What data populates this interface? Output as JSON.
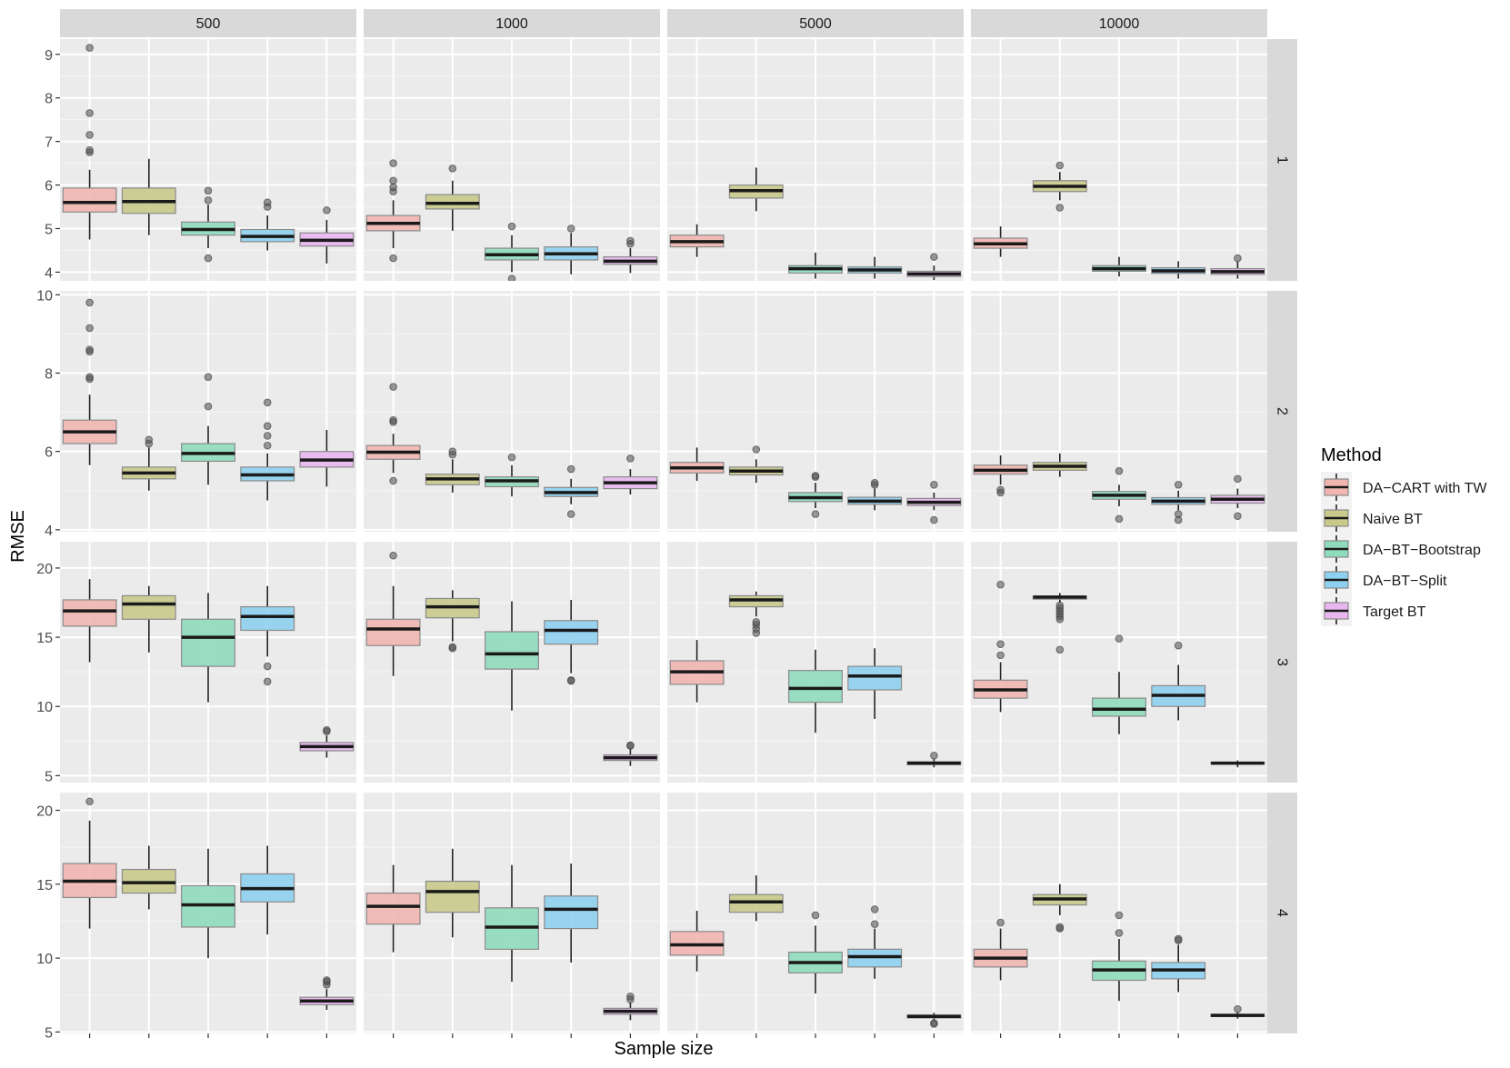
{
  "chart_data": {
    "type": "boxplot",
    "xlabel": "Sample size",
    "ylabel": "RMSE",
    "col_facets": [
      "500",
      "1000",
      "5000",
      "10000"
    ],
    "row_facets": [
      "1",
      "2",
      "3",
      "4"
    ],
    "legend": {
      "title": "Method",
      "position": "right",
      "entries": [
        "DA−CART with TW",
        "Naive BT",
        "DA−BT−Bootstrap",
        "DA−BT−Split",
        "Target BT"
      ]
    },
    "colors": [
      "#f1b6b0",
      "#c9c98c",
      "#8fdcbc",
      "#8ed0ef",
      "#e9b7ef"
    ],
    "grid": true,
    "rows": [
      {
        "yticks": [
          4,
          5,
          6,
          7,
          8,
          9
        ],
        "ylim": [
          3.8,
          9.35
        ],
        "panels": [
          [
            {
              "lo": 4.75,
              "q1": 5.38,
              "med": 5.6,
              "q3": 5.93,
              "hi": 6.35,
              "out": [
                6.75,
                6.8,
                7.15,
                7.65,
                9.15
              ]
            },
            {
              "lo": 4.85,
              "q1": 5.35,
              "med": 5.62,
              "q3": 5.93,
              "hi": 6.6,
              "out": []
            },
            {
              "lo": 4.55,
              "q1": 4.85,
              "med": 4.98,
              "q3": 5.15,
              "hi": 5.55,
              "out": [
                4.32,
                5.65,
                5.87
              ]
            },
            {
              "lo": 4.5,
              "q1": 4.7,
              "med": 4.82,
              "q3": 4.98,
              "hi": 5.3,
              "out": [
                5.5,
                5.6
              ]
            },
            {
              "lo": 4.2,
              "q1": 4.6,
              "med": 4.73,
              "q3": 4.9,
              "hi": 5.2,
              "out": [
                5.42
              ]
            }
          ],
          [
            {
              "lo": 4.55,
              "q1": 4.95,
              "med": 5.12,
              "q3": 5.3,
              "hi": 5.65,
              "out": [
                4.32,
                5.85,
                5.95,
                6.1,
                6.5
              ]
            },
            {
              "lo": 4.95,
              "q1": 5.45,
              "med": 5.58,
              "q3": 5.78,
              "hi": 6.1,
              "out": [
                6.38
              ]
            },
            {
              "lo": 4.0,
              "q1": 4.28,
              "med": 4.4,
              "q3": 4.55,
              "hi": 4.85,
              "out": [
                3.85,
                5.05
              ]
            },
            {
              "lo": 3.95,
              "q1": 4.28,
              "med": 4.42,
              "q3": 4.58,
              "hi": 4.9,
              "out": [
                5.0
              ]
            },
            {
              "lo": 3.98,
              "q1": 4.18,
              "med": 4.25,
              "q3": 4.35,
              "hi": 4.55,
              "out": [
                4.65,
                4.72
              ]
            }
          ],
          [
            {
              "lo": 4.35,
              "q1": 4.58,
              "med": 4.7,
              "q3": 4.85,
              "hi": 5.1,
              "out": []
            },
            {
              "lo": 5.4,
              "q1": 5.7,
              "med": 5.87,
              "q3": 6.0,
              "hi": 6.4,
              "out": []
            },
            {
              "lo": 3.85,
              "q1": 3.98,
              "med": 4.08,
              "q3": 4.15,
              "hi": 4.45,
              "out": [
                3.65
              ]
            },
            {
              "lo": 3.85,
              "q1": 3.98,
              "med": 4.05,
              "q3": 4.12,
              "hi": 4.35,
              "out": [
                3.65
              ]
            },
            {
              "lo": 3.82,
              "q1": 3.9,
              "med": 3.96,
              "q3": 4.02,
              "hi": 4.15,
              "out": [
                4.35
              ]
            }
          ],
          [
            {
              "lo": 4.35,
              "q1": 4.55,
              "med": 4.65,
              "q3": 4.78,
              "hi": 5.05,
              "out": []
            },
            {
              "lo": 5.65,
              "q1": 5.85,
              "med": 5.97,
              "q3": 6.1,
              "hi": 6.3,
              "out": [
                5.48,
                6.45
              ]
            },
            {
              "lo": 3.9,
              "q1": 4.02,
              "med": 4.08,
              "q3": 4.15,
              "hi": 4.35,
              "out": []
            },
            {
              "lo": 3.85,
              "q1": 3.97,
              "med": 4.03,
              "q3": 4.1,
              "hi": 4.25,
              "out": []
            },
            {
              "lo": 3.85,
              "q1": 3.95,
              "med": 4.01,
              "q3": 4.08,
              "hi": 4.25,
              "out": [
                4.32
              ]
            }
          ]
        ]
      },
      {
        "yticks": [
          4,
          6,
          8,
          10
        ],
        "ylim": [
          3.95,
          10.1
        ],
        "panels": [
          [
            {
              "lo": 5.65,
              "q1": 6.2,
              "med": 6.5,
              "q3": 6.8,
              "hi": 7.45,
              "out": [
                7.85,
                7.9,
                8.55,
                8.6,
                9.15,
                9.8
              ]
            },
            {
              "lo": 5.0,
              "q1": 5.3,
              "med": 5.45,
              "q3": 5.6,
              "hi": 6.1,
              "out": [
                6.2,
                6.3
              ]
            },
            {
              "lo": 5.15,
              "q1": 5.75,
              "med": 5.95,
              "q3": 6.2,
              "hi": 6.65,
              "out": [
                7.15,
                7.9
              ]
            },
            {
              "lo": 4.75,
              "q1": 5.25,
              "med": 5.4,
              "q3": 5.6,
              "hi": 5.95,
              "out": [
                6.15,
                6.4,
                6.65,
                7.25
              ]
            },
            {
              "lo": 5.1,
              "q1": 5.6,
              "med": 5.78,
              "q3": 6.0,
              "hi": 6.55,
              "out": []
            }
          ],
          [
            {
              "lo": 5.45,
              "q1": 5.8,
              "med": 5.98,
              "q3": 6.15,
              "hi": 6.45,
              "out": [
                5.25,
                6.75,
                6.8,
                7.65
              ]
            },
            {
              "lo": 4.95,
              "q1": 5.15,
              "med": 5.3,
              "q3": 5.42,
              "hi": 5.8,
              "out": [
                5.92,
                6.0
              ]
            },
            {
              "lo": 4.85,
              "q1": 5.1,
              "med": 5.25,
              "q3": 5.35,
              "hi": 5.65,
              "out": [
                5.85
              ]
            },
            {
              "lo": 4.65,
              "q1": 4.85,
              "med": 4.95,
              "q3": 5.08,
              "hi": 5.3,
              "out": [
                4.4,
                5.55
              ]
            },
            {
              "lo": 4.9,
              "q1": 5.05,
              "med": 5.2,
              "q3": 5.35,
              "hi": 5.55,
              "out": [
                5.82
              ]
            }
          ],
          [
            {
              "lo": 5.25,
              "q1": 5.45,
              "med": 5.58,
              "q3": 5.72,
              "hi": 6.1,
              "out": []
            },
            {
              "lo": 5.2,
              "q1": 5.4,
              "med": 5.5,
              "q3": 5.6,
              "hi": 5.8,
              "out": [
                6.05
              ]
            },
            {
              "lo": 4.55,
              "q1": 4.72,
              "med": 4.82,
              "q3": 4.95,
              "hi": 5.2,
              "out": [
                4.4,
                5.35,
                5.38
              ]
            },
            {
              "lo": 4.5,
              "q1": 4.65,
              "med": 4.73,
              "q3": 4.83,
              "hi": 5.05,
              "out": [
                5.15,
                5.2
              ]
            },
            {
              "lo": 4.5,
              "q1": 4.62,
              "med": 4.7,
              "q3": 4.8,
              "hi": 4.95,
              "out": [
                4.25,
                5.15
              ]
            }
          ],
          [
            {
              "lo": 5.15,
              "q1": 5.42,
              "med": 5.52,
              "q3": 5.65,
              "hi": 5.9,
              "out": [
                4.95,
                5.02
              ]
            },
            {
              "lo": 5.35,
              "q1": 5.52,
              "med": 5.62,
              "q3": 5.72,
              "hi": 5.95,
              "out": []
            },
            {
              "lo": 4.6,
              "q1": 4.78,
              "med": 4.88,
              "q3": 4.98,
              "hi": 5.15,
              "out": [
                4.28,
                5.5
              ]
            },
            {
              "lo": 4.5,
              "q1": 4.65,
              "med": 4.73,
              "q3": 4.82,
              "hi": 5.0,
              "out": [
                4.25,
                4.4,
                5.15
              ]
            },
            {
              "lo": 4.55,
              "q1": 4.68,
              "med": 4.78,
              "q3": 4.88,
              "hi": 5.05,
              "out": [
                4.35,
                5.3
              ]
            }
          ]
        ]
      },
      {
        "yticks": [
          5,
          10,
          15,
          20
        ],
        "ylim": [
          4.5,
          21.9
        ],
        "panels": [
          [
            {
              "lo": 13.2,
              "q1": 15.8,
              "med": 16.9,
              "q3": 17.7,
              "hi": 19.2,
              "out": []
            },
            {
              "lo": 13.9,
              "q1": 16.3,
              "med": 17.4,
              "q3": 18.0,
              "hi": 18.7,
              "out": []
            },
            {
              "lo": 10.3,
              "q1": 12.9,
              "med": 15.0,
              "q3": 16.3,
              "hi": 18.2,
              "out": []
            },
            {
              "lo": 13.6,
              "q1": 15.5,
              "med": 16.5,
              "q3": 17.2,
              "hi": 18.7,
              "out": [
                11.8,
                12.9
              ]
            },
            {
              "lo": 6.3,
              "q1": 6.8,
              "med": 7.1,
              "q3": 7.4,
              "hi": 7.9,
              "out": [
                8.2,
                8.3
              ]
            }
          ],
          [
            {
              "lo": 12.2,
              "q1": 14.4,
              "med": 15.6,
              "q3": 16.3,
              "hi": 18.7,
              "out": [
                20.9
              ]
            },
            {
              "lo": 14.7,
              "q1": 16.4,
              "med": 17.2,
              "q3": 17.8,
              "hi": 18.4,
              "out": [
                14.2,
                14.3
              ]
            },
            {
              "lo": 9.7,
              "q1": 12.7,
              "med": 13.8,
              "q3": 15.4,
              "hi": 17.6,
              "out": []
            },
            {
              "lo": 12.4,
              "q1": 14.5,
              "med": 15.5,
              "q3": 16.2,
              "hi": 17.7,
              "out": [
                11.9,
                11.85
              ]
            },
            {
              "lo": 5.7,
              "q1": 6.1,
              "med": 6.3,
              "q3": 6.5,
              "hi": 6.9,
              "out": [
                7.15,
                7.2
              ]
            }
          ],
          [
            {
              "lo": 10.3,
              "q1": 11.6,
              "med": 12.5,
              "q3": 13.3,
              "hi": 14.8,
              "out": []
            },
            {
              "lo": 16.5,
              "q1": 17.2,
              "med": 17.7,
              "q3": 18.0,
              "hi": 18.3,
              "out": [
                15.3,
                15.6,
                15.9,
                16.1
              ]
            },
            {
              "lo": 8.1,
              "q1": 10.3,
              "med": 11.3,
              "q3": 12.6,
              "hi": 14.1,
              "out": []
            },
            {
              "lo": 9.1,
              "q1": 11.2,
              "med": 12.2,
              "q3": 12.9,
              "hi": 14.2,
              "out": []
            },
            {
              "lo": 5.6,
              "q1": 5.8,
              "med": 5.9,
              "q3": 6.0,
              "hi": 6.2,
              "out": [
                6.45
              ]
            }
          ],
          [
            {
              "lo": 9.6,
              "q1": 10.6,
              "med": 11.2,
              "q3": 11.9,
              "hi": 13.2,
              "out": [
                13.7,
                14.5,
                18.8
              ]
            },
            {
              "lo": 17.5,
              "q1": 17.75,
              "med": 17.9,
              "q3": 17.95,
              "hi": 18.2,
              "out": [
                14.1,
                16.3,
                16.5,
                16.7,
                16.9,
                17.1,
                17.3
              ]
            },
            {
              "lo": 8.0,
              "q1": 9.3,
              "med": 9.8,
              "q3": 10.6,
              "hi": 12.5,
              "out": [
                14.9
              ]
            },
            {
              "lo": 9.0,
              "q1": 10.0,
              "med": 10.8,
              "q3": 11.5,
              "hi": 13.0,
              "out": [
                14.4
              ]
            },
            {
              "lo": 5.6,
              "q1": 5.85,
              "med": 5.9,
              "q3": 5.95,
              "hi": 6.1,
              "out": []
            }
          ]
        ]
      },
      {
        "yticks": [
          5,
          10,
          15,
          20
        ],
        "ylim": [
          4.9,
          21.2
        ],
        "panels": [
          [
            {
              "lo": 12.0,
              "q1": 14.1,
              "med": 15.2,
              "q3": 16.4,
              "hi": 19.3,
              "out": [
                20.6
              ]
            },
            {
              "lo": 13.3,
              "q1": 14.4,
              "med": 15.1,
              "q3": 16.0,
              "hi": 17.6,
              "out": []
            },
            {
              "lo": 10.0,
              "q1": 12.1,
              "med": 13.6,
              "q3": 14.9,
              "hi": 17.4,
              "out": []
            },
            {
              "lo": 11.6,
              "q1": 13.8,
              "med": 14.7,
              "q3": 15.7,
              "hi": 17.6,
              "out": []
            },
            {
              "lo": 6.5,
              "q1": 6.85,
              "med": 7.1,
              "q3": 7.35,
              "hi": 7.9,
              "out": [
                8.2,
                8.4,
                8.5
              ]
            }
          ],
          [
            {
              "lo": 10.4,
              "q1": 12.3,
              "med": 13.5,
              "q3": 14.4,
              "hi": 16.3,
              "out": []
            },
            {
              "lo": 11.4,
              "q1": 13.1,
              "med": 14.5,
              "q3": 15.2,
              "hi": 17.4,
              "out": []
            },
            {
              "lo": 8.4,
              "q1": 10.6,
              "med": 12.1,
              "q3": 13.4,
              "hi": 16.3,
              "out": []
            },
            {
              "lo": 9.7,
              "q1": 12.0,
              "med": 13.3,
              "q3": 14.2,
              "hi": 16.4,
              "out": []
            },
            {
              "lo": 5.8,
              "q1": 6.2,
              "med": 6.4,
              "q3": 6.6,
              "hi": 7.0,
              "out": [
                7.2,
                7.4
              ]
            }
          ],
          [
            {
              "lo": 9.1,
              "q1": 10.2,
              "med": 10.9,
              "q3": 11.8,
              "hi": 13.2,
              "out": []
            },
            {
              "lo": 12.5,
              "q1": 13.1,
              "med": 13.8,
              "q3": 14.3,
              "hi": 15.6,
              "out": []
            },
            {
              "lo": 7.6,
              "q1": 9.0,
              "med": 9.7,
              "q3": 10.4,
              "hi": 12.2,
              "out": [
                12.9
              ]
            },
            {
              "lo": 8.6,
              "q1": 9.4,
              "med": 10.1,
              "q3": 10.6,
              "hi": 12.0,
              "out": [
                12.3,
                13.3
              ]
            },
            {
              "lo": 5.8,
              "q1": 5.95,
              "med": 6.05,
              "q3": 6.15,
              "hi": 6.3,
              "out": [
                5.6,
                5.55
              ]
            }
          ],
          [
            {
              "lo": 8.5,
              "q1": 9.4,
              "med": 10.0,
              "q3": 10.6,
              "hi": 12.0,
              "out": [
                12.4
              ]
            },
            {
              "lo": 12.9,
              "q1": 13.6,
              "med": 14.0,
              "q3": 14.3,
              "hi": 15.0,
              "out": [
                12.0,
                12.1
              ]
            },
            {
              "lo": 7.1,
              "q1": 8.5,
              "med": 9.2,
              "q3": 9.8,
              "hi": 11.3,
              "out": [
                11.7,
                12.9
              ]
            },
            {
              "lo": 7.7,
              "q1": 8.6,
              "med": 9.2,
              "q3": 9.7,
              "hi": 10.9,
              "out": [
                11.2,
                11.3
              ]
            },
            {
              "lo": 5.9,
              "q1": 6.05,
              "med": 6.12,
              "q3": 6.2,
              "hi": 6.35,
              "out": [
                6.55
              ]
            }
          ]
        ]
      }
    ]
  }
}
